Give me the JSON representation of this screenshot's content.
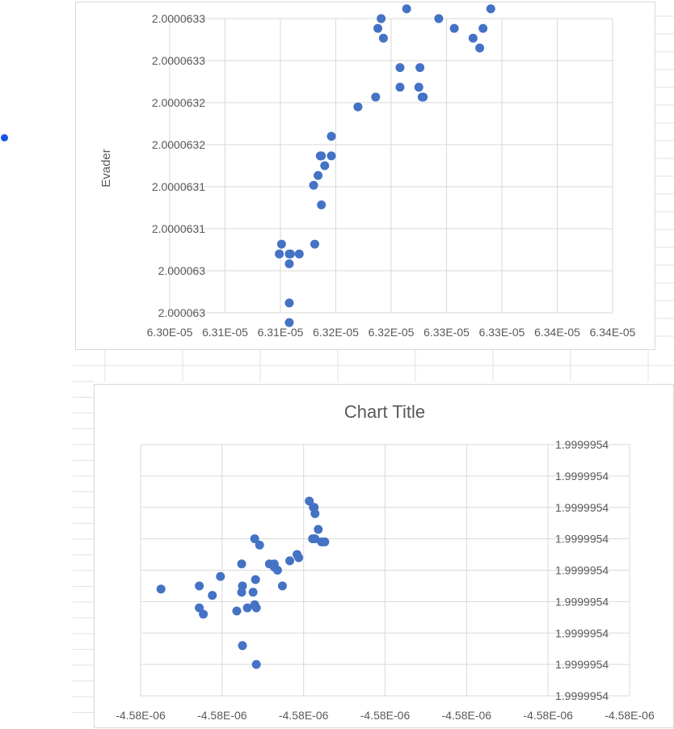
{
  "chart_data": [
    {
      "type": "scatter",
      "title": "",
      "xlabel": "",
      "ylabel": "Evader",
      "grid": true,
      "marker_color": "#4472c4",
      "x_tick_labels": [
        "6.30E-05",
        "6.31E-05",
        "6.31E-05",
        "6.32E-05",
        "6.32E-05",
        "6.33E-05",
        "6.33E-05",
        "6.34E-05",
        "6.34E-05"
      ],
      "y_tick_labels": [
        "2.0000633",
        "2.0000633",
        "2.0000632",
        "2.0000632",
        "2.0000631",
        "2.0000631",
        "2.000063",
        "2.000063"
      ],
      "xlim": [
        6.3e-05,
        6.34e-05
      ],
      "ylim": [
        2.000063,
        2.0000633
      ],
      "x": [
        6.3099e-05,
        6.3101e-05,
        6.3108e-05,
        6.3108e-05,
        6.3109e-05,
        6.3108e-05,
        6.3108e-05,
        6.3117e-05,
        6.313e-05,
        6.3131e-05,
        6.3134e-05,
        6.3136e-05,
        6.3137e-05,
        6.3137e-05,
        6.314e-05,
        6.3146e-05,
        6.3146e-05,
        6.317e-05,
        6.3186e-05,
        6.3188e-05,
        6.3191e-05,
        6.3193e-05,
        6.3208e-05,
        6.3208e-05,
        6.3214e-05,
        6.3225e-05,
        6.3226e-05,
        6.3228e-05,
        6.3229e-05,
        6.3243e-05,
        6.3257e-05,
        6.3274e-05,
        6.3276e-05,
        6.328e-05,
        6.3283e-05,
        6.329e-05
      ],
      "y": [
        2.00006306,
        2.00006307,
        2.00006305,
        2.00006306,
        2.00006306,
        2.00006301,
        2.00006299,
        2.00006306,
        2.00006313,
        2.00006307,
        2.00006314,
        2.00006316,
        2.00006316,
        2.00006311,
        2.00006315,
        2.00006316,
        2.00006318,
        2.00006321,
        2.00006322,
        2.00006329,
        2.0000633,
        2.00006328,
        2.00006323,
        2.00006325,
        2.00006331,
        2.00006323,
        2.00006325,
        2.00006322,
        2.00006322,
        2.0000633,
        2.00006329,
        2.00006328,
        2.00006334,
        2.00006327,
        2.00006329,
        2.00006331
      ]
    },
    {
      "type": "scatter",
      "title": "Chart Title",
      "xlabel": "",
      "ylabel": "",
      "grid": true,
      "marker_color": "#4472c4",
      "x_tick_labels": [
        "-4.58E-06",
        "-4.58E-06",
        "-4.58E-06",
        "-4.58E-06",
        "-4.58E-06",
        "-4.58E-06",
        "-4.58E-06"
      ],
      "y_tick_labels": [
        "1.9999954",
        "1.9999954",
        "1.9999954",
        "1.9999954",
        "1.9999954",
        "1.9999954",
        "1.9999954",
        "1.9999954",
        "1.9999954"
      ],
      "xlim": [
        -4.584e-06,
        -4.578e-06
      ],
      "ylim": [
        1.99999536,
        1.99999544
      ],
      "x": [
        -4.58375e-06,
        -4.58328e-06,
        -4.58328e-06,
        -4.58323e-06,
        -4.58312e-06,
        -4.58302e-06,
        -4.58282e-06,
        -4.58276e-06,
        -4.58276e-06,
        -4.58275e-06,
        -4.58275e-06,
        -4.58269e-06,
        -4.58262e-06,
        -4.5826e-06,
        -4.5826e-06,
        -4.58259e-06,
        -4.58258e-06,
        -4.58258e-06,
        -4.58254e-06,
        -4.58242e-06,
        -4.58236e-06,
        -4.58236e-06,
        -4.58232e-06,
        -4.58226e-06,
        -4.58217e-06,
        -4.58208e-06,
        -4.58206e-06,
        -4.58193e-06,
        -4.58189e-06,
        -4.58188e-06,
        -4.58187e-06,
        -4.58186e-06,
        -4.58186e-06,
        -4.58182e-06,
        -4.58178e-06,
        -4.58174e-06
      ],
      "y": [
        1.999995394,
        1.999995395,
        1.999995388,
        1.999995386,
        1.999995392,
        1.999995398,
        1.999995387,
        1.999995402,
        1.999995393,
        1.999995395,
        1.999995376,
        1.999995388,
        1.999995393,
        1.999995389,
        1.99999541,
        1.999995397,
        1.999995388,
        1.99999537,
        1.999995408,
        1.999995402,
        1.999995401,
        1.999995402,
        1.9999954,
        1.999995395,
        1.999995403,
        1.999995405,
        1.999995404,
        1.999995422,
        1.99999541,
        1.99999542,
        1.99999542,
        1.99999541,
        1.999995418,
        1.999995413,
        1.999995409,
        1.999995409
      ]
    }
  ]
}
